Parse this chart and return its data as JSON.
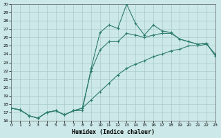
{
  "xlabel": "Humidex (Indice chaleur)",
  "bg_color": "#cce8e8",
  "line_color": "#2e7d6e",
  "grid_color": "#aacaca",
  "xlim": [
    0,
    23
  ],
  "ylim": [
    16,
    30
  ],
  "yticks": [
    16,
    17,
    18,
    19,
    20,
    21,
    22,
    23,
    24,
    25,
    26,
    27,
    28,
    29,
    30
  ],
  "xticks": [
    0,
    1,
    2,
    3,
    4,
    5,
    6,
    7,
    8,
    9,
    10,
    11,
    12,
    13,
    14,
    15,
    16,
    17,
    18,
    19,
    20,
    21,
    22,
    23
  ],
  "line1_x": [
    0,
    1,
    2,
    3,
    4,
    5,
    6,
    7,
    8,
    9,
    10,
    11,
    12,
    13,
    14,
    15,
    16,
    17,
    18,
    19,
    20,
    21,
    22,
    23
  ],
  "line1_y": [
    17.5,
    17.3,
    16.6,
    16.3,
    17.0,
    17.2,
    16.7,
    17.2,
    17.2,
    22.3,
    26.6,
    27.5,
    27.1,
    30.0,
    27.7,
    26.3,
    27.5,
    26.8,
    26.6,
    25.8,
    25.5,
    25.2,
    25.3,
    23.8
  ],
  "line2_x": [
    0,
    1,
    2,
    3,
    4,
    5,
    6,
    7,
    8,
    9,
    10,
    11,
    12,
    13,
    14,
    15,
    16,
    17,
    18,
    19,
    20,
    21,
    22,
    23
  ],
  "line2_y": [
    17.5,
    17.3,
    16.6,
    16.3,
    17.0,
    17.2,
    16.7,
    17.2,
    17.5,
    22.0,
    24.5,
    25.5,
    25.5,
    26.5,
    26.3,
    26.0,
    26.3,
    26.5,
    26.5,
    25.8,
    25.5,
    25.2,
    25.3,
    23.8
  ],
  "line3_x": [
    0,
    1,
    2,
    3,
    4,
    5,
    6,
    7,
    8,
    9,
    10,
    11,
    12,
    13,
    14,
    15,
    16,
    17,
    18,
    19,
    20,
    21,
    22,
    23
  ],
  "line3_y": [
    17.5,
    17.3,
    16.6,
    16.3,
    17.0,
    17.2,
    16.7,
    17.2,
    17.5,
    18.5,
    19.5,
    20.5,
    21.5,
    22.3,
    22.8,
    23.2,
    23.7,
    24.0,
    24.4,
    24.6,
    25.0,
    25.0,
    25.2,
    24.0
  ]
}
